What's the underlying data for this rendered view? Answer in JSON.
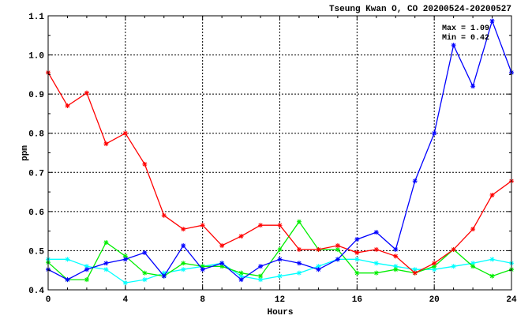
{
  "chart_data": {
    "type": "line",
    "title": "Tseung Kwan O, CO 20200524-20200527",
    "xlabel": "Hours",
    "ylabel": "ppm",
    "xlim": [
      0,
      24
    ],
    "ylim": [
      0.4,
      1.1
    ],
    "xticks": [
      0,
      4,
      8,
      12,
      16,
      20,
      24
    ],
    "xtick_labels": [
      "0",
      "4",
      "8",
      "12",
      "16",
      "20",
      "24"
    ],
    "yticks": [
      0.4,
      0.5,
      0.6,
      0.7,
      0.8,
      0.9,
      1.0,
      1.1
    ],
    "ytick_labels": [
      "0.4",
      "0.5",
      "0.6",
      "0.7",
      "0.8",
      "0.9",
      "1.0",
      "1.1"
    ],
    "grid": true,
    "annotations": {
      "max": "Max = 1.09",
      "min": "Min = 0.42"
    },
    "x": [
      0,
      1,
      2,
      3,
      4,
      5,
      6,
      7,
      8,
      9,
      10,
      11,
      12,
      13,
      14,
      15,
      16,
      17,
      18,
      19,
      20,
      21,
      22,
      23,
      24
    ],
    "series": [
      {
        "color": "#ff0000",
        "values": [
          0.955,
          0.87,
          0.903,
          0.773,
          0.8,
          0.721,
          0.59,
          0.555,
          0.565,
          0.513,
          0.537,
          0.565,
          0.565,
          0.503,
          0.503,
          0.513,
          0.495,
          0.503,
          0.486,
          0.443,
          0.468,
          0.503,
          0.555,
          0.642,
          0.678
        ]
      },
      {
        "color": "#00ee00",
        "values": [
          0.47,
          0.426,
          0.426,
          0.521,
          0.486,
          0.443,
          0.435,
          0.468,
          0.46,
          0.46,
          0.443,
          0.435,
          0.503,
          0.574,
          0.503,
          0.503,
          0.443,
          0.443,
          0.452,
          0.443,
          0.46,
          0.503,
          0.46,
          0.435,
          0.452
        ]
      },
      {
        "color": "#0000ff",
        "values": [
          0.452,
          0.426,
          0.452,
          0.468,
          0.478,
          0.495,
          0.435,
          0.513,
          0.452,
          0.468,
          0.426,
          0.46,
          0.478,
          0.468,
          0.452,
          0.478,
          0.529,
          0.547,
          0.503,
          0.678,
          0.8,
          1.025,
          0.92,
          1.087,
          0.955
        ]
      },
      {
        "color": "#00ffff",
        "values": [
          0.478,
          0.478,
          0.46,
          0.452,
          0.418,
          0.426,
          0.443,
          0.452,
          0.46,
          0.468,
          0.435,
          0.426,
          0.435,
          0.443,
          0.46,
          0.478,
          0.478,
          0.468,
          0.46,
          0.452,
          0.452,
          0.46,
          0.468,
          0.478,
          0.468
        ]
      }
    ]
  }
}
